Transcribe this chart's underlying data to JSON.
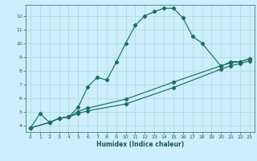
{
  "xlabel": "Humidex (Indice chaleur)",
  "bg_color": "#cceeff",
  "grid_color": "#aaddcc",
  "line_color": "#1a7060",
  "xlim": [
    -0.5,
    23.5
  ],
  "ylim": [
    3.5,
    12.8
  ],
  "yticks": [
    4,
    5,
    6,
    7,
    8,
    9,
    10,
    11,
    12
  ],
  "xticks": [
    0,
    1,
    2,
    3,
    4,
    5,
    6,
    7,
    8,
    9,
    10,
    11,
    12,
    13,
    14,
    15,
    16,
    17,
    18,
    19,
    20,
    21,
    22,
    23
  ],
  "series1_x": [
    0,
    1,
    2,
    3,
    4,
    5,
    6,
    7,
    8,
    9,
    10,
    11,
    12,
    13,
    14,
    15,
    16,
    17,
    18,
    20,
    21,
    22,
    23
  ],
  "series1_y": [
    3.8,
    4.85,
    4.2,
    4.5,
    4.6,
    5.3,
    6.8,
    7.5,
    7.3,
    8.6,
    10.0,
    11.3,
    12.0,
    12.3,
    12.55,
    12.55,
    11.85,
    10.5,
    10.0,
    8.3,
    8.65,
    8.65,
    8.85
  ],
  "series2_x": [
    0,
    2,
    3,
    4,
    5,
    6,
    10,
    15,
    20,
    21,
    22,
    23
  ],
  "series2_y": [
    3.8,
    4.2,
    4.5,
    4.6,
    5.0,
    5.25,
    5.9,
    7.15,
    8.35,
    8.55,
    8.65,
    8.85
  ],
  "series3_x": [
    0,
    2,
    3,
    4,
    5,
    6,
    10,
    15,
    20,
    21,
    22,
    23
  ],
  "series3_y": [
    3.8,
    4.2,
    4.5,
    4.6,
    4.85,
    5.05,
    5.55,
    6.75,
    8.1,
    8.35,
    8.5,
    8.7
  ]
}
